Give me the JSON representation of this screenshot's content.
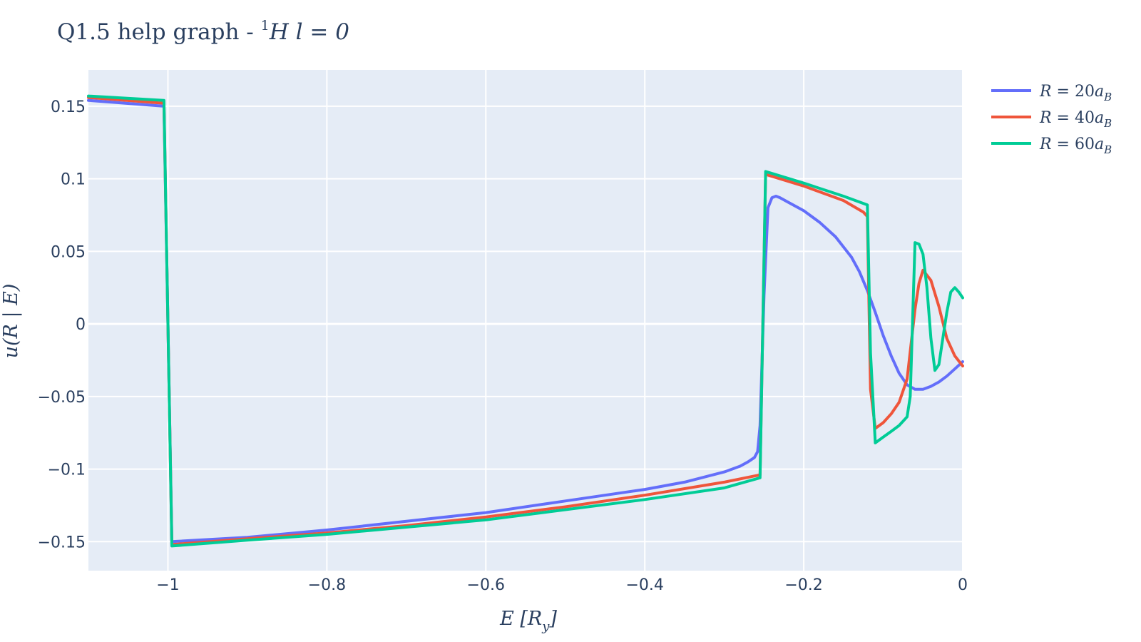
{
  "chart_data": {
    "type": "line",
    "title": "Q1.5 help graph - ¹H l = 0",
    "xlabel": "E [Ry]",
    "ylabel": "u(R | E)",
    "xlim": [
      -1.1,
      0
    ],
    "ylim": [
      -0.17,
      0.175
    ],
    "x_ticks": [
      {
        "value": -1,
        "label": "−1"
      },
      {
        "value": -0.8,
        "label": "−0.8"
      },
      {
        "value": -0.6,
        "label": "−0.6"
      },
      {
        "value": -0.4,
        "label": "−0.4"
      },
      {
        "value": -0.2,
        "label": "−0.2"
      },
      {
        "value": 0,
        "label": "0"
      }
    ],
    "y_ticks": [
      {
        "value": 0.15,
        "label": "0.15"
      },
      {
        "value": 0.1,
        "label": "0.1"
      },
      {
        "value": 0.05,
        "label": "0.05"
      },
      {
        "value": 0,
        "label": "0"
      },
      {
        "value": -0.05,
        "label": "−0.05"
      },
      {
        "value": -0.1,
        "label": "−0.1"
      },
      {
        "value": -0.15,
        "label": "−0.15"
      }
    ],
    "grid": true,
    "legend_position": "top-right",
    "plot_background": "#e5ecf6",
    "series": [
      {
        "name": "R = 20a_B",
        "color": "#636efa",
        "x": [
          -1.1,
          -1.005,
          -1.0,
          -0.995,
          -0.9,
          -0.8,
          -0.7,
          -0.6,
          -0.5,
          -0.45,
          -0.4,
          -0.35,
          -0.3,
          -0.28,
          -0.27,
          -0.262,
          -0.258,
          -0.255,
          -0.25,
          -0.245,
          -0.24,
          -0.235,
          -0.23,
          -0.22,
          -0.2,
          -0.18,
          -0.16,
          -0.15,
          -0.14,
          -0.13,
          -0.12,
          -0.11,
          -0.1,
          -0.09,
          -0.08,
          -0.07,
          -0.06,
          -0.05,
          -0.04,
          -0.03,
          -0.02,
          -0.01,
          0.0
        ],
        "y": [
          0.154,
          0.15,
          0.0,
          -0.15,
          -0.147,
          -0.142,
          -0.136,
          -0.13,
          -0.122,
          -0.118,
          -0.114,
          -0.109,
          -0.102,
          -0.098,
          -0.095,
          -0.092,
          -0.088,
          -0.07,
          0.02,
          0.08,
          0.087,
          0.088,
          0.087,
          0.084,
          0.078,
          0.07,
          0.06,
          0.053,
          0.046,
          0.036,
          0.023,
          0.008,
          -0.008,
          -0.022,
          -0.034,
          -0.042,
          -0.045,
          -0.045,
          -0.043,
          -0.04,
          -0.036,
          -0.031,
          -0.026
        ]
      },
      {
        "name": "R = 40a_B",
        "color": "#ef553b",
        "x": [
          -1.1,
          -1.005,
          -1.0,
          -0.995,
          -0.9,
          -0.8,
          -0.7,
          -0.6,
          -0.5,
          -0.4,
          -0.3,
          -0.255,
          -0.248,
          -0.2,
          -0.15,
          -0.125,
          -0.12,
          -0.116,
          -0.11,
          -0.1,
          -0.09,
          -0.08,
          -0.07,
          -0.06,
          -0.055,
          -0.05,
          -0.04,
          -0.03,
          -0.02,
          -0.01,
          0.0
        ],
        "y": [
          0.156,
          0.152,
          0.0,
          -0.152,
          -0.148,
          -0.144,
          -0.139,
          -0.133,
          -0.126,
          -0.118,
          -0.109,
          -0.104,
          0.103,
          0.095,
          0.085,
          0.077,
          0.074,
          -0.045,
          -0.072,
          -0.068,
          -0.062,
          -0.054,
          -0.038,
          0.01,
          0.028,
          0.037,
          0.03,
          0.012,
          -0.01,
          -0.022,
          -0.029
        ]
      },
      {
        "name": "R = 60a_B",
        "color": "#00cc96",
        "x": [
          -1.1,
          -1.005,
          -1.0,
          -0.995,
          -0.9,
          -0.8,
          -0.7,
          -0.6,
          -0.5,
          -0.4,
          -0.3,
          -0.255,
          -0.248,
          -0.2,
          -0.15,
          -0.12,
          -0.116,
          -0.11,
          -0.1,
          -0.09,
          -0.08,
          -0.07,
          -0.066,
          -0.06,
          -0.055,
          -0.05,
          -0.045,
          -0.04,
          -0.035,
          -0.03,
          -0.025,
          -0.02,
          -0.015,
          -0.01,
          -0.005,
          0.0
        ],
        "y": [
          0.157,
          0.154,
          0.0,
          -0.153,
          -0.149,
          -0.145,
          -0.14,
          -0.135,
          -0.128,
          -0.121,
          -0.113,
          -0.106,
          0.105,
          0.097,
          0.088,
          0.082,
          -0.02,
          -0.082,
          -0.078,
          -0.074,
          -0.07,
          -0.064,
          -0.05,
          0.056,
          0.055,
          0.048,
          0.025,
          -0.01,
          -0.032,
          -0.028,
          -0.01,
          0.008,
          0.022,
          0.025,
          0.022,
          0.018
        ]
      }
    ]
  },
  "legend": {
    "items": [
      {
        "prefix": "R = ",
        "number": "20",
        "sub": "B"
      },
      {
        "prefix": "R = ",
        "number": "40",
        "sub": "B"
      },
      {
        "prefix": "R = ",
        "number": "60",
        "sub": "B"
      }
    ]
  },
  "title": {
    "pre": "Q1.5 help graph - ",
    "sup": "1",
    "post": "H l = 0"
  },
  "axes": {
    "x_main": "E [R",
    "x_sub": "y",
    "x_end": "]",
    "y_text": "u(R | E)"
  }
}
